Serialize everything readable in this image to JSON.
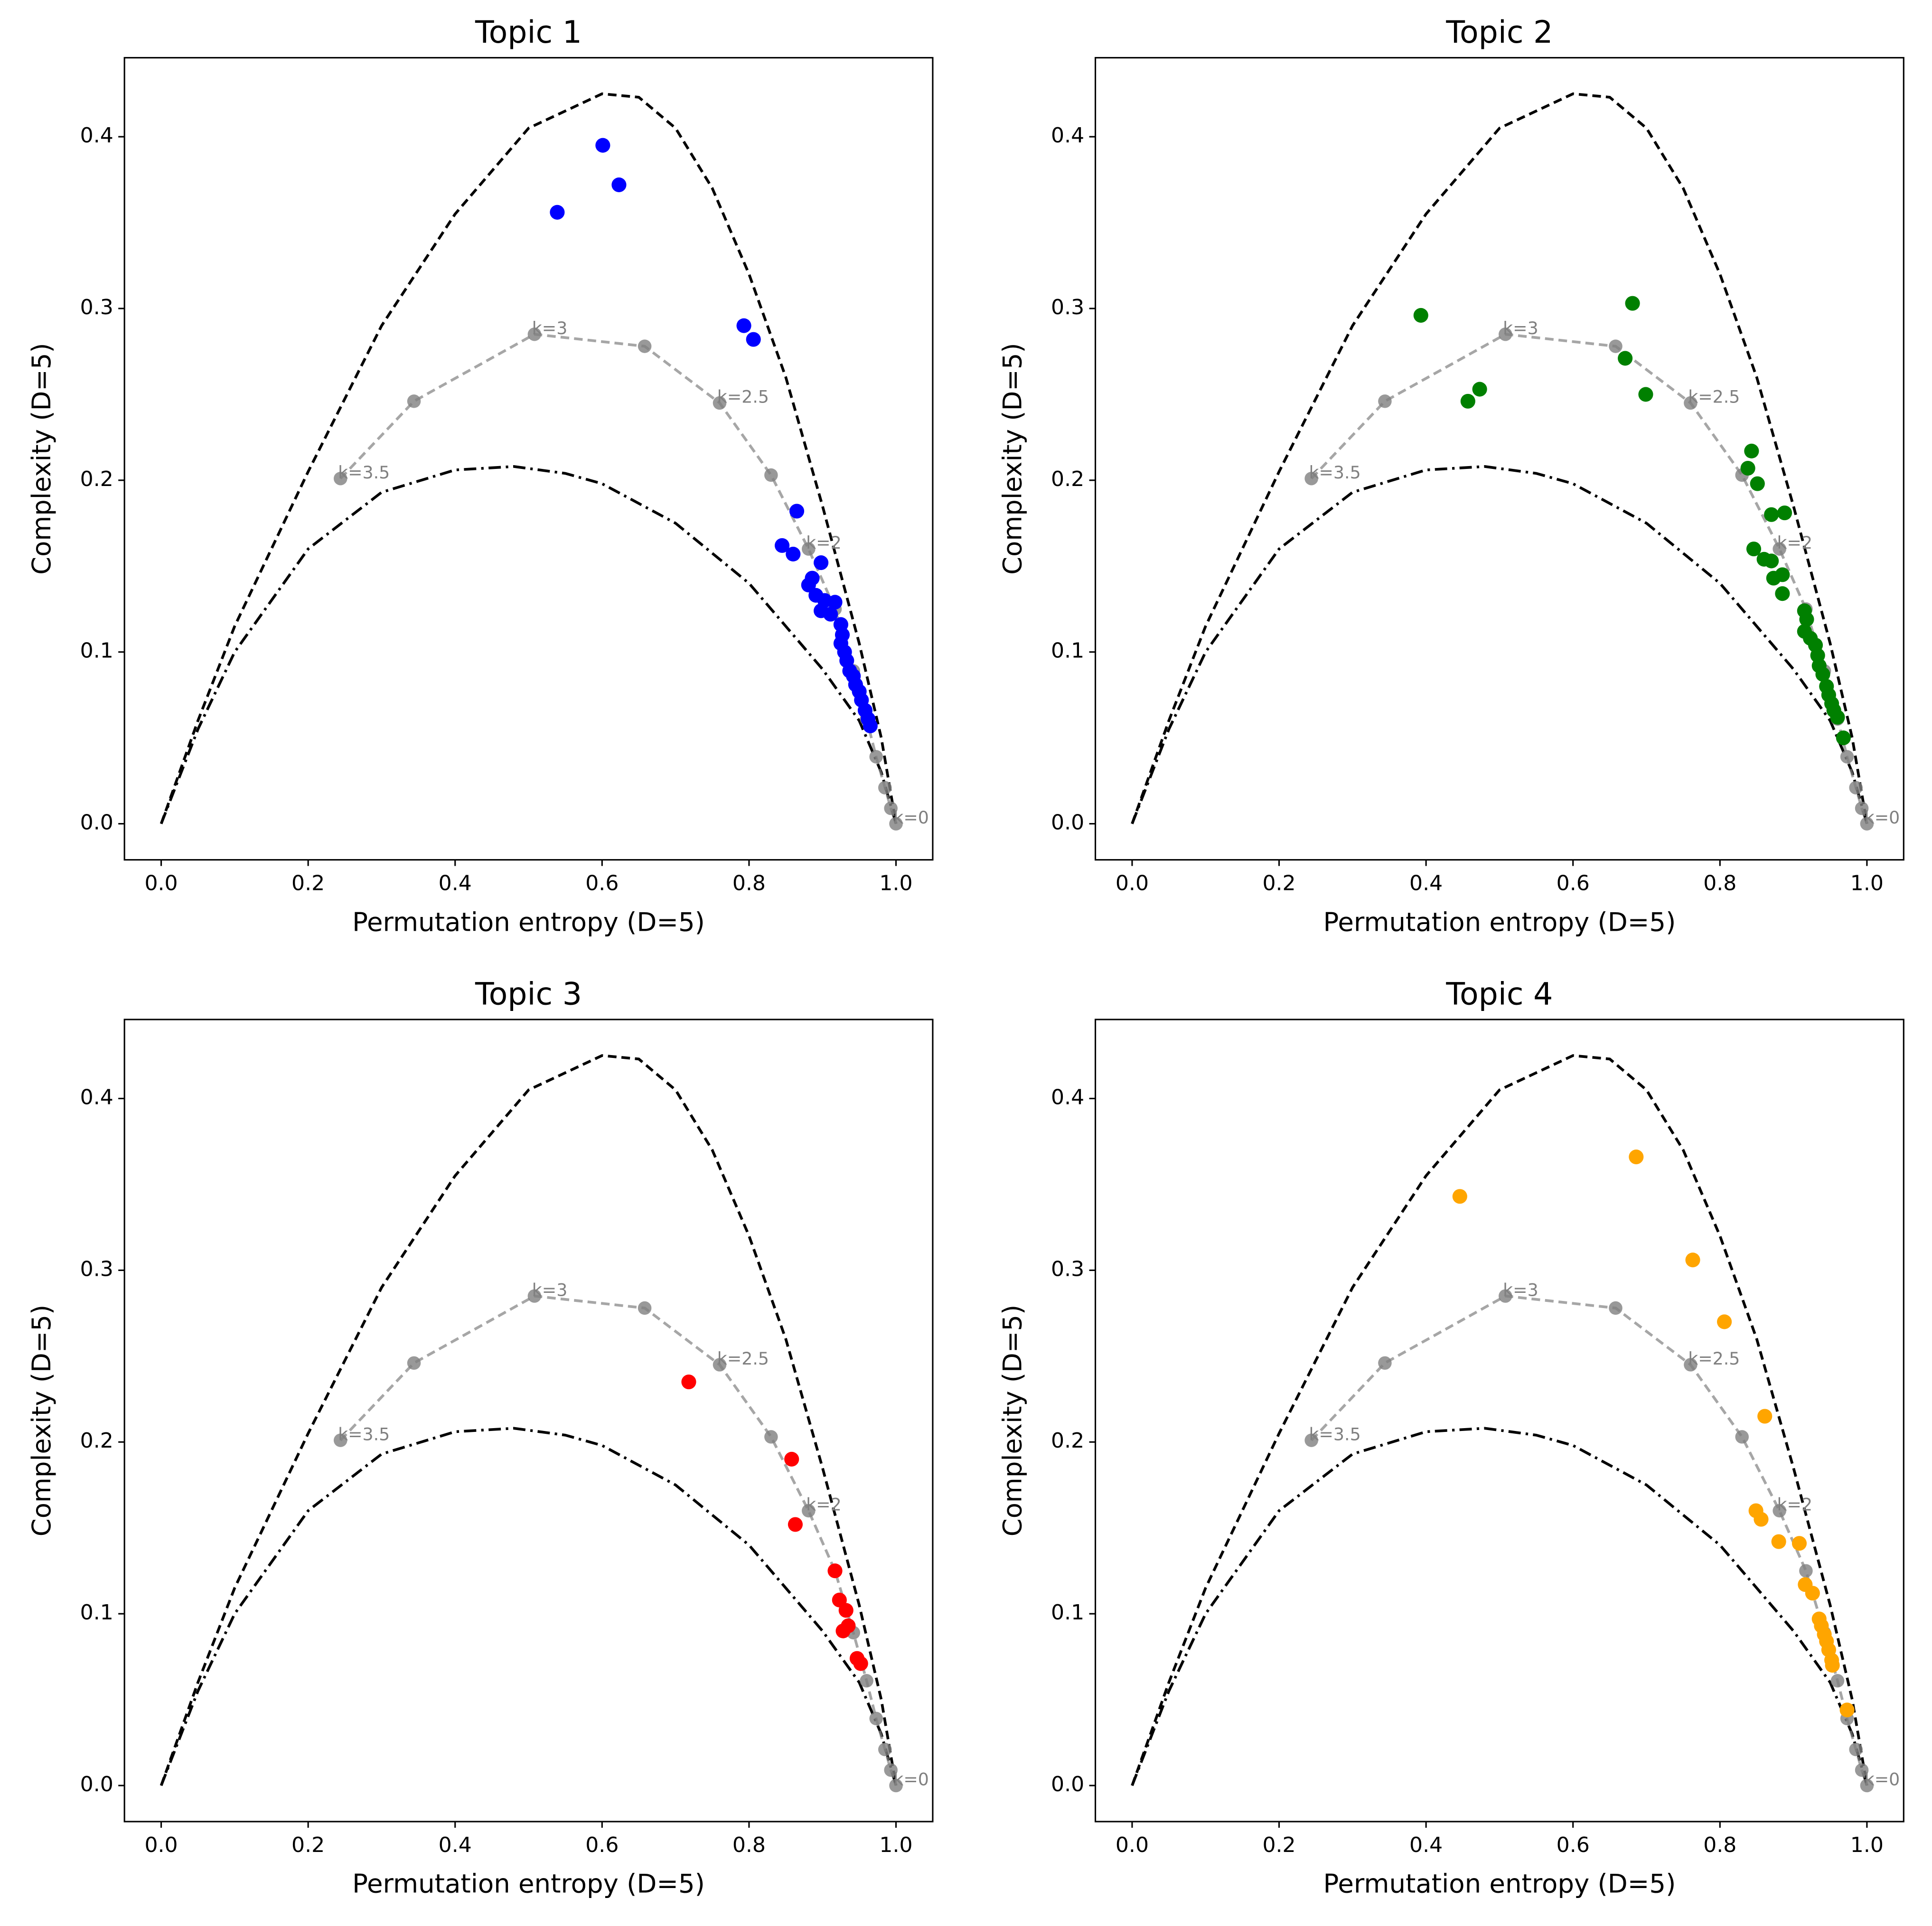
{
  "chart_data": [
    {
      "type": "scatter",
      "title": "Topic 1",
      "xlabel": "Permutation entropy (D=5)",
      "ylabel": "Complexity (D=5)",
      "xlim": [
        -0.05,
        1.05
      ],
      "ylim": [
        -0.021,
        0.446
      ],
      "xticks": [
        {
          "value": 0,
          "label": "0.0"
        },
        0.2,
        0.4,
        0.6,
        0.8,
        {
          "value": 1,
          "label": "1.0"
        }
      ],
      "yticks": [
        {
          "value": 0,
          "label": "0.0"
        },
        0.1,
        0.2,
        0.3,
        0.4
      ],
      "grid": false,
      "series": [
        {
          "color": "#0000ff",
          "x": [
            0.601,
            0.623,
            0.539,
            0.793,
            0.806,
            0.865,
            0.845,
            0.86,
            0.898,
            0.886,
            0.881,
            0.891,
            0.903,
            0.917,
            0.898,
            0.911,
            0.925,
            0.927,
            0.925,
            0.93,
            0.933,
            0.937,
            0.942,
            0.945,
            0.95,
            0.953,
            0.958,
            0.962,
            0.965
          ],
          "values": [
            0.395,
            0.372,
            0.356,
            0.29,
            0.282,
            0.182,
            0.162,
            0.157,
            0.152,
            0.143,
            0.139,
            0.133,
            0.13,
            0.129,
            0.124,
            0.122,
            0.116,
            0.11,
            0.105,
            0.1,
            0.095,
            0.089,
            0.086,
            0.081,
            0.077,
            0.072,
            0.066,
            0.061,
            0.057
          ]
        }
      ],
      "curves": [
        {
          "style": "dashed",
          "color": "#000000",
          "x": [
            0,
            0.05,
            0.1,
            0.2,
            0.3,
            0.4,
            0.5,
            0.6,
            0.65,
            0.7,
            0.75,
            0.8,
            0.85,
            0.9,
            0.95,
            0.98,
            1.0
          ],
          "values": [
            0,
            0.06,
            0.115,
            0.205,
            0.29,
            0.355,
            0.405,
            0.425,
            0.423,
            0.405,
            0.37,
            0.32,
            0.26,
            0.185,
            0.105,
            0.05,
            0
          ]
        },
        {
          "style": "dashdot",
          "color": "#000000",
          "x": [
            0,
            0.05,
            0.1,
            0.2,
            0.3,
            0.4,
            0.48,
            0.55,
            0.6,
            0.7,
            0.8,
            0.9,
            0.95,
            0.98,
            1.0
          ],
          "values": [
            0,
            0.055,
            0.1,
            0.16,
            0.193,
            0.206,
            0.208,
            0.204,
            0.198,
            0.175,
            0.14,
            0.09,
            0.06,
            0.03,
            0
          ]
        },
        {
          "style": "dashed",
          "color": "#808080",
          "markers": true,
          "x": [
            0.244,
            0.344,
            0.508,
            0.658,
            0.76,
            0.83,
            0.881,
            0.917,
            0.942,
            0.96,
            0.973,
            0.985,
            0.993,
            1.0
          ],
          "values": [
            0.201,
            0.246,
            0.285,
            0.278,
            0.245,
            0.203,
            0.16,
            0.125,
            0.089,
            0.061,
            0.039,
            0.021,
            0.009,
            0
          ],
          "point_labels": [
            "k=3.5",
            null,
            "k=3",
            null,
            "k=2.5",
            null,
            "k=2",
            null,
            null,
            null,
            null,
            null,
            null,
            "k=0"
          ]
        }
      ]
    },
    {
      "type": "scatter",
      "title": "Topic 2",
      "xlabel": "Permutation entropy (D=5)",
      "ylabel": "Complexity (D=5)",
      "xlim": [
        -0.05,
        1.05
      ],
      "ylim": [
        -0.021,
        0.446
      ],
      "xticks": [
        {
          "value": 0,
          "label": "0.0"
        },
        0.2,
        0.4,
        0.6,
        0.8,
        {
          "value": 1,
          "label": "1.0"
        }
      ],
      "yticks": [
        {
          "value": 0,
          "label": "0.0"
        },
        0.1,
        0.2,
        0.3,
        0.4
      ],
      "grid": false,
      "series": [
        {
          "color": "#008000",
          "x": [
            0.393,
            0.681,
            0.671,
            0.699,
            0.473,
            0.457,
            0.843,
            0.838,
            0.851,
            0.87,
            0.888,
            0.846,
            0.86,
            0.87,
            0.885,
            0.873,
            0.885,
            0.915,
            0.918,
            0.915,
            0.923,
            0.93,
            0.933,
            0.935,
            0.94,
            0.945,
            0.948,
            0.952,
            0.955,
            0.96,
            0.968
          ],
          "values": [
            0.296,
            0.303,
            0.271,
            0.25,
            0.253,
            0.246,
            0.217,
            0.207,
            0.198,
            0.18,
            0.181,
            0.16,
            0.154,
            0.153,
            0.145,
            0.143,
            0.134,
            0.124,
            0.119,
            0.112,
            0.108,
            0.104,
            0.098,
            0.092,
            0.087,
            0.08,
            0.075,
            0.07,
            0.066,
            0.062,
            0.05
          ]
        }
      ],
      "curves": [
        {
          "style": "dashed",
          "color": "#000000",
          "x": [
            0,
            0.05,
            0.1,
            0.2,
            0.3,
            0.4,
            0.5,
            0.6,
            0.65,
            0.7,
            0.75,
            0.8,
            0.85,
            0.9,
            0.95,
            0.98,
            1.0
          ],
          "values": [
            0,
            0.06,
            0.115,
            0.205,
            0.29,
            0.355,
            0.405,
            0.425,
            0.423,
            0.405,
            0.37,
            0.32,
            0.26,
            0.185,
            0.105,
            0.05,
            0
          ]
        },
        {
          "style": "dashdot",
          "color": "#000000",
          "x": [
            0,
            0.05,
            0.1,
            0.2,
            0.3,
            0.4,
            0.48,
            0.55,
            0.6,
            0.7,
            0.8,
            0.9,
            0.95,
            0.98,
            1.0
          ],
          "values": [
            0,
            0.055,
            0.1,
            0.16,
            0.193,
            0.206,
            0.208,
            0.204,
            0.198,
            0.175,
            0.14,
            0.09,
            0.06,
            0.03,
            0
          ]
        },
        {
          "style": "dashed",
          "color": "#808080",
          "markers": true,
          "x": [
            0.244,
            0.344,
            0.508,
            0.658,
            0.76,
            0.83,
            0.881,
            0.917,
            0.942,
            0.96,
            0.973,
            0.985,
            0.993,
            1.0
          ],
          "values": [
            0.201,
            0.246,
            0.285,
            0.278,
            0.245,
            0.203,
            0.16,
            0.125,
            0.089,
            0.061,
            0.039,
            0.021,
            0.009,
            0
          ],
          "point_labels": [
            "k=3.5",
            null,
            "k=3",
            null,
            "k=2.5",
            null,
            "k=2",
            null,
            null,
            null,
            null,
            null,
            null,
            "k=0"
          ]
        }
      ]
    },
    {
      "type": "scatter",
      "title": "Topic 3",
      "xlabel": "Permutation entropy (D=5)",
      "ylabel": "Complexity (D=5)",
      "xlim": [
        -0.05,
        1.05
      ],
      "ylim": [
        -0.021,
        0.446
      ],
      "xticks": [
        {
          "value": 0,
          "label": "0.0"
        },
        0.2,
        0.4,
        0.6,
        0.8,
        {
          "value": 1,
          "label": "1.0"
        }
      ],
      "yticks": [
        {
          "value": 0,
          "label": "0.0"
        },
        0.1,
        0.2,
        0.3,
        0.4
      ],
      "grid": false,
      "series": [
        {
          "color": "#ff0000",
          "x": [
            0.718,
            0.858,
            0.863,
            0.917,
            0.923,
            0.932,
            0.935,
            0.928,
            0.947,
            0.952
          ],
          "values": [
            0.235,
            0.19,
            0.152,
            0.125,
            0.108,
            0.102,
            0.093,
            0.09,
            0.074,
            0.071
          ]
        }
      ],
      "curves": [
        {
          "style": "dashed",
          "color": "#000000",
          "x": [
            0,
            0.05,
            0.1,
            0.2,
            0.3,
            0.4,
            0.5,
            0.6,
            0.65,
            0.7,
            0.75,
            0.8,
            0.85,
            0.9,
            0.95,
            0.98,
            1.0
          ],
          "values": [
            0,
            0.06,
            0.115,
            0.205,
            0.29,
            0.355,
            0.405,
            0.425,
            0.423,
            0.405,
            0.37,
            0.32,
            0.26,
            0.185,
            0.105,
            0.05,
            0
          ]
        },
        {
          "style": "dashdot",
          "color": "#000000",
          "x": [
            0,
            0.05,
            0.1,
            0.2,
            0.3,
            0.4,
            0.48,
            0.55,
            0.6,
            0.7,
            0.8,
            0.9,
            0.95,
            0.98,
            1.0
          ],
          "values": [
            0,
            0.055,
            0.1,
            0.16,
            0.193,
            0.206,
            0.208,
            0.204,
            0.198,
            0.175,
            0.14,
            0.09,
            0.06,
            0.03,
            0
          ]
        },
        {
          "style": "dashed",
          "color": "#808080",
          "markers": true,
          "x": [
            0.244,
            0.344,
            0.508,
            0.658,
            0.76,
            0.83,
            0.881,
            0.917,
            0.942,
            0.96,
            0.973,
            0.985,
            0.993,
            1.0
          ],
          "values": [
            0.201,
            0.246,
            0.285,
            0.278,
            0.245,
            0.203,
            0.16,
            0.125,
            0.089,
            0.061,
            0.039,
            0.021,
            0.009,
            0
          ],
          "point_labels": [
            "k=3.5",
            null,
            "k=3",
            null,
            "k=2.5",
            null,
            "k=2",
            null,
            null,
            null,
            null,
            null,
            null,
            "k=0"
          ]
        }
      ]
    },
    {
      "type": "scatter",
      "title": "Topic 4",
      "xlabel": "Permutation entropy (D=5)",
      "ylabel": "Complexity (D=5)",
      "xlim": [
        -0.05,
        1.05
      ],
      "ylim": [
        -0.021,
        0.446
      ],
      "xticks": [
        {
          "value": 0,
          "label": "0.0"
        },
        0.2,
        0.4,
        0.6,
        0.8,
        {
          "value": 1,
          "label": "1.0"
        }
      ],
      "yticks": [
        {
          "value": 0,
          "label": "0.0"
        },
        0.1,
        0.2,
        0.3,
        0.4
      ],
      "grid": false,
      "series": [
        {
          "color": "#ffa500",
          "x": [
            0.446,
            0.686,
            0.763,
            0.806,
            0.861,
            0.849,
            0.856,
            0.88,
            0.908,
            0.916,
            0.926,
            0.935,
            0.938,
            0.942,
            0.945,
            0.948,
            0.952,
            0.953,
            0.973
          ],
          "values": [
            0.343,
            0.366,
            0.306,
            0.27,
            0.215,
            0.16,
            0.155,
            0.142,
            0.141,
            0.117,
            0.112,
            0.097,
            0.093,
            0.088,
            0.084,
            0.079,
            0.073,
            0.07,
            0.044
          ]
        }
      ],
      "curves": [
        {
          "style": "dashed",
          "color": "#000000",
          "x": [
            0,
            0.05,
            0.1,
            0.2,
            0.3,
            0.4,
            0.5,
            0.6,
            0.65,
            0.7,
            0.75,
            0.8,
            0.85,
            0.9,
            0.95,
            0.98,
            1.0
          ],
          "values": [
            0,
            0.06,
            0.115,
            0.205,
            0.29,
            0.355,
            0.405,
            0.425,
            0.423,
            0.405,
            0.37,
            0.32,
            0.26,
            0.185,
            0.105,
            0.05,
            0
          ]
        },
        {
          "style": "dashdot",
          "color": "#000000",
          "x": [
            0,
            0.05,
            0.1,
            0.2,
            0.3,
            0.4,
            0.48,
            0.55,
            0.6,
            0.7,
            0.8,
            0.9,
            0.95,
            0.98,
            1.0
          ],
          "values": [
            0,
            0.055,
            0.1,
            0.16,
            0.193,
            0.206,
            0.208,
            0.204,
            0.198,
            0.175,
            0.14,
            0.09,
            0.06,
            0.03,
            0
          ]
        },
        {
          "style": "dashed",
          "color": "#808080",
          "markers": true,
          "x": [
            0.244,
            0.344,
            0.508,
            0.658,
            0.76,
            0.83,
            0.881,
            0.917,
            0.942,
            0.96,
            0.973,
            0.985,
            0.993,
            1.0
          ],
          "values": [
            0.201,
            0.246,
            0.285,
            0.278,
            0.245,
            0.203,
            0.16,
            0.125,
            0.089,
            0.061,
            0.039,
            0.021,
            0.009,
            0
          ],
          "point_labels": [
            "k=3.5",
            null,
            "k=3",
            null,
            "k=2.5",
            null,
            "k=2",
            null,
            null,
            null,
            null,
            null,
            null,
            "k=0"
          ]
        }
      ]
    }
  ]
}
